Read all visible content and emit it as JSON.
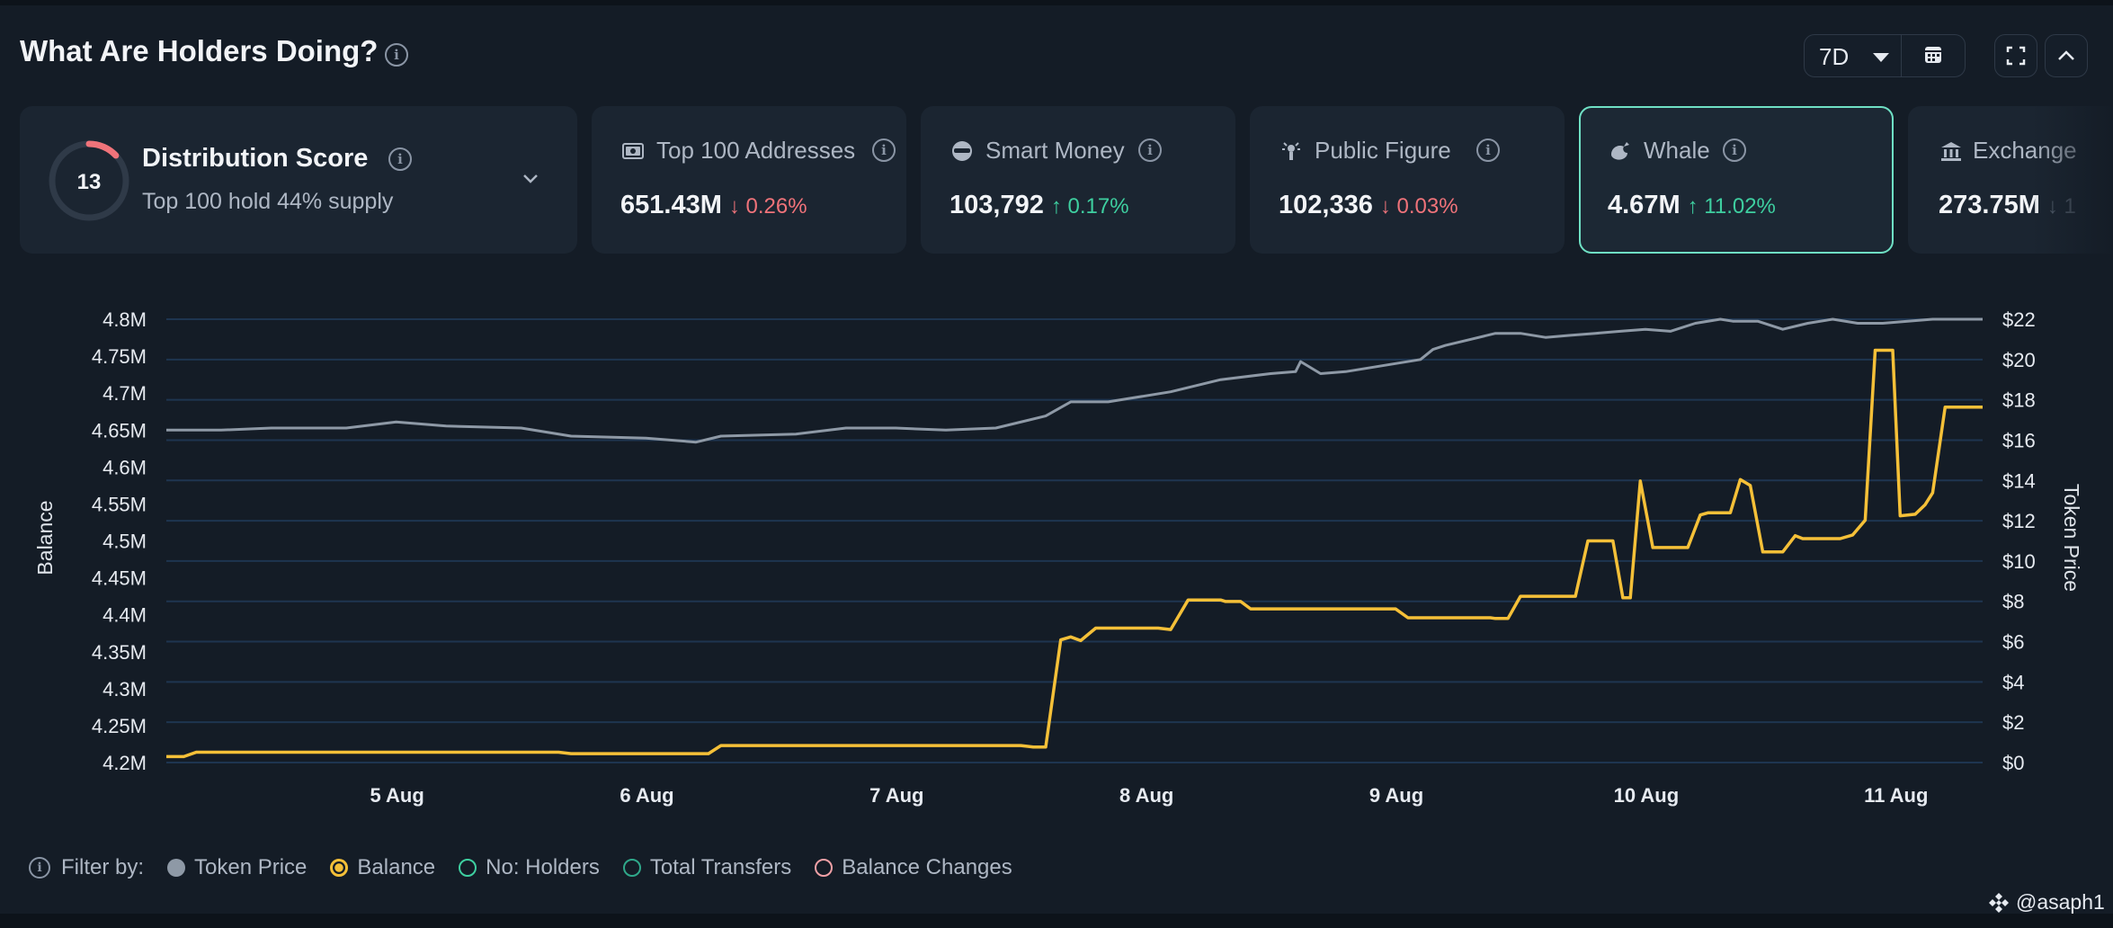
{
  "header": {
    "title": "What Are Holders Doing?",
    "range": "7D"
  },
  "colors": {
    "accent": "#6fe0c4",
    "up": "#3ecfa0",
    "down": "#f0737a",
    "balance": "#f5c038",
    "price": "#8e99a6"
  },
  "cards": {
    "distribution": {
      "score": "13",
      "score_value": 13,
      "title": "Distribution Score",
      "subtitle": "Top 100 hold 44% supply",
      "icon": "chevron-down-icon"
    },
    "top100": {
      "label": "Top 100 Addresses",
      "value": "651.43M",
      "change": "0.26%",
      "direction": "down",
      "icon": "wallet-icon"
    },
    "smart_money": {
      "label": "Smart Money",
      "value": "103,792",
      "change": "0.17%",
      "direction": "up",
      "icon": "sunglasses-icon"
    },
    "public_figure": {
      "label": "Public Figure",
      "value": "102,336",
      "change": "0.03%",
      "direction": "down",
      "icon": "megaphone-icon"
    },
    "whale": {
      "label": "Whale",
      "value": "4.67M",
      "change": "11.02%",
      "direction": "up",
      "icon": "whale-icon",
      "selected": true
    },
    "exchange": {
      "label": "Exchange",
      "value": "273.75M",
      "icon": "bank-icon"
    }
  },
  "legend": {
    "prefix": "Filter by:",
    "items": [
      {
        "label": "Token Price",
        "color": "#8e99a6",
        "state": "filled"
      },
      {
        "label": "Balance",
        "color": "#f5c038",
        "state": "selected"
      },
      {
        "label": "No: Holders",
        "color": "#3ecfa0",
        "state": "outline"
      },
      {
        "label": "Total Transfers",
        "color": "#2fa88a",
        "state": "outline"
      },
      {
        "label": "Balance Changes",
        "color": "#f0a0a6",
        "state": "outline"
      }
    ]
  },
  "watermark": "@asaph1",
  "chart_data": {
    "type": "line",
    "xlabel": "",
    "ylabel": "Balance",
    "y2label": "Token Price",
    "x_ticks": [
      "5 Aug",
      "6 Aug",
      "7 Aug",
      "8 Aug",
      "9 Aug",
      "10 Aug",
      "11 Aug"
    ],
    "x_range": [
      4.08,
      11.35
    ],
    "ylim": [
      4.2,
      4.8
    ],
    "y_ticks": [
      "4.2M",
      "4.25M",
      "4.3M",
      "4.35M",
      "4.4M",
      "4.45M",
      "4.5M",
      "4.55M",
      "4.6M",
      "4.65M",
      "4.7M",
      "4.75M",
      "4.8M"
    ],
    "y2lim": [
      0,
      22
    ],
    "y2_ticks": [
      "$0",
      "$2",
      "$4",
      "$6",
      "$8",
      "$10",
      "$12",
      "$14",
      "$16",
      "$18",
      "$20",
      "$22"
    ],
    "grid": true,
    "series": [
      {
        "name": "Balance",
        "axis": "left",
        "color": "#f5c038",
        "points": [
          [
            4.08,
            4.208
          ],
          [
            4.15,
            4.208
          ],
          [
            4.2,
            4.214
          ],
          [
            5.65,
            4.214
          ],
          [
            5.7,
            4.212
          ],
          [
            6.25,
            4.212
          ],
          [
            6.3,
            4.223
          ],
          [
            7.5,
            4.223
          ],
          [
            7.55,
            4.221
          ],
          [
            7.6,
            4.221
          ],
          [
            7.66,
            4.366
          ],
          [
            7.7,
            4.37
          ],
          [
            7.74,
            4.365
          ],
          [
            7.8,
            4.382
          ],
          [
            8.05,
            4.382
          ],
          [
            8.1,
            4.38
          ],
          [
            8.17,
            4.42
          ],
          [
            8.3,
            4.42
          ],
          [
            8.32,
            4.418
          ],
          [
            8.38,
            4.418
          ],
          [
            8.42,
            4.408
          ],
          [
            9,
            4.408
          ],
          [
            9.05,
            4.396
          ],
          [
            9.38,
            4.396
          ],
          [
            9.4,
            4.395
          ],
          [
            9.45,
            4.395
          ],
          [
            9.5,
            4.425
          ],
          [
            9.72,
            4.425
          ],
          [
            9.77,
            4.5
          ],
          [
            9.87,
            4.5
          ],
          [
            9.91,
            4.423
          ],
          [
            9.94,
            4.423
          ],
          [
            9.98,
            4.581
          ],
          [
            10.03,
            4.491
          ],
          [
            10.17,
            4.491
          ],
          [
            10.22,
            4.535
          ],
          [
            10.25,
            4.538
          ],
          [
            10.34,
            4.538
          ],
          [
            10.38,
            4.583
          ],
          [
            10.42,
            4.575
          ],
          [
            10.47,
            4.485
          ],
          [
            10.55,
            4.485
          ],
          [
            10.6,
            4.507
          ],
          [
            10.63,
            4.503
          ],
          [
            10.78,
            4.503
          ],
          [
            10.83,
            4.508
          ],
          [
            10.88,
            4.528
          ],
          [
            10.92,
            4.758
          ],
          [
            10.99,
            4.758
          ],
          [
            11.02,
            4.534
          ],
          [
            11.08,
            4.536
          ],
          [
            11.12,
            4.549
          ],
          [
            11.15,
            4.565
          ],
          [
            11.2,
            4.681
          ],
          [
            11.35,
            4.681
          ]
        ]
      },
      {
        "name": "Token Price",
        "axis": "right",
        "color": "#8e99a6",
        "points": [
          [
            4.08,
            16.5
          ],
          [
            4.3,
            16.5
          ],
          [
            4.5,
            16.6
          ],
          [
            4.8,
            16.6
          ],
          [
            5.0,
            16.9
          ],
          [
            5.2,
            16.7
          ],
          [
            5.5,
            16.6
          ],
          [
            5.7,
            16.2
          ],
          [
            6.0,
            16.1
          ],
          [
            6.2,
            15.9
          ],
          [
            6.3,
            16.2
          ],
          [
            6.6,
            16.3
          ],
          [
            6.8,
            16.6
          ],
          [
            7.0,
            16.6
          ],
          [
            7.2,
            16.5
          ],
          [
            7.4,
            16.6
          ],
          [
            7.6,
            17.2
          ],
          [
            7.7,
            17.9
          ],
          [
            7.85,
            17.9
          ],
          [
            7.95,
            18.1
          ],
          [
            8.1,
            18.4
          ],
          [
            8.2,
            18.7
          ],
          [
            8.3,
            19.0
          ],
          [
            8.5,
            19.3
          ],
          [
            8.6,
            19.4
          ],
          [
            8.62,
            19.9
          ],
          [
            8.7,
            19.3
          ],
          [
            8.8,
            19.4
          ],
          [
            8.9,
            19.6
          ],
          [
            9.0,
            19.8
          ],
          [
            9.1,
            20.0
          ],
          [
            9.15,
            20.5
          ],
          [
            9.2,
            20.7
          ],
          [
            9.3,
            21.0
          ],
          [
            9.4,
            21.3
          ],
          [
            9.5,
            21.3
          ],
          [
            9.6,
            21.1
          ],
          [
            9.7,
            21.2
          ],
          [
            9.8,
            21.3
          ],
          [
            9.9,
            21.4
          ],
          [
            10.0,
            21.5
          ],
          [
            10.1,
            21.4
          ],
          [
            10.2,
            21.8
          ],
          [
            10.3,
            22.0
          ],
          [
            10.35,
            21.9
          ],
          [
            10.45,
            21.9
          ],
          [
            10.55,
            21.5
          ],
          [
            10.65,
            21.8
          ],
          [
            10.75,
            22.0
          ],
          [
            10.85,
            21.8
          ],
          [
            10.95,
            21.8
          ],
          [
            11.05,
            21.9
          ],
          [
            11.15,
            22.0
          ],
          [
            11.25,
            22.0
          ],
          [
            11.35,
            22.0
          ]
        ]
      }
    ]
  }
}
